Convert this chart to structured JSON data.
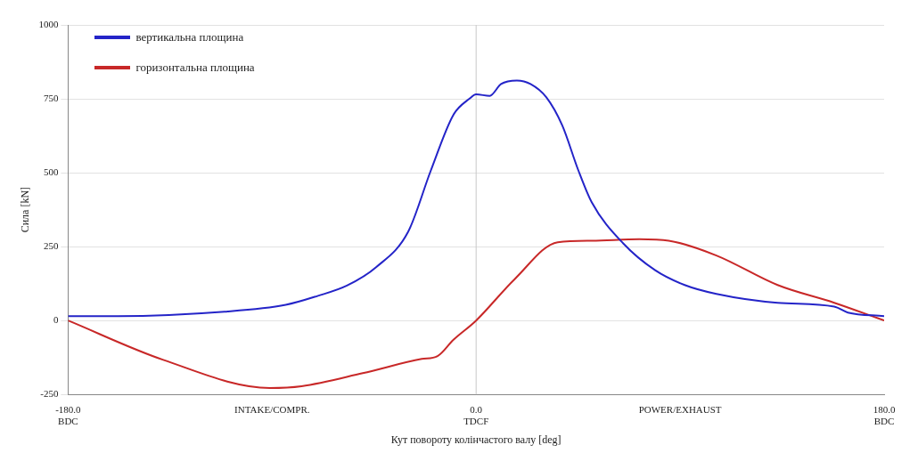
{
  "chart_data": {
    "type": "line",
    "xlabel": "Кут повороту колінчастого валу [deg]",
    "ylabel": "Сила [kN]",
    "xlim": [
      -180,
      180
    ],
    "xticks": [
      {
        "value": -180,
        "label": "-180.0\nBDC"
      },
      {
        "value": -90,
        "label": "INTAKE/COMPR."
      },
      {
        "value": 0,
        "label": "0.0\nTDCF"
      },
      {
        "value": 90,
        "label": "POWER/EXHAUST"
      },
      {
        "value": 180,
        "label": "180.0\nBDC"
      }
    ],
    "ylim": [
      -250,
      1000
    ],
    "yticks": [
      -250,
      0,
      250,
      500,
      750,
      1000
    ],
    "grid": "y",
    "legend": "top left",
    "marker": "none",
    "line_style": "solid",
    "ref_lines": [
      {
        "axis": "x",
        "value": 0,
        "color": "#c8c8c8"
      }
    ],
    "series": [
      {
        "name": "вертикальна площина",
        "color": "#2424c8",
        "x": [
          -180,
          -158,
          -111,
          -84,
          -70,
          -57,
          -44,
          -30,
          -20,
          -10,
          -3,
          0,
          6,
          11,
          18,
          24,
          31,
          38,
          45,
          51,
          65,
          79,
          92,
          106,
          133,
          158,
          164,
          180
        ],
        "values": [
          15,
          15,
          30,
          53,
          83,
          118,
          181,
          300,
          507,
          696,
          750,
          765,
          760,
          800,
          812,
          800,
          755,
          660,
          510,
          400,
          260,
          170,
          120,
          90,
          60,
          47,
          27,
          15
        ]
      },
      {
        "name": "горизонтальна площина",
        "color": "#c82828",
        "x": [
          -180,
          -138,
          -91,
          -77,
          -50,
          -24,
          -17,
          -10,
          0,
          17,
          36,
          51,
          72,
          85,
          106,
          133,
          158,
          180
        ],
        "values": [
          0,
          -133,
          -228,
          -222,
          -178,
          -130,
          -120,
          -65,
          0,
          140,
          265,
          270,
          275,
          270,
          220,
          120,
          60,
          0
        ]
      }
    ]
  }
}
